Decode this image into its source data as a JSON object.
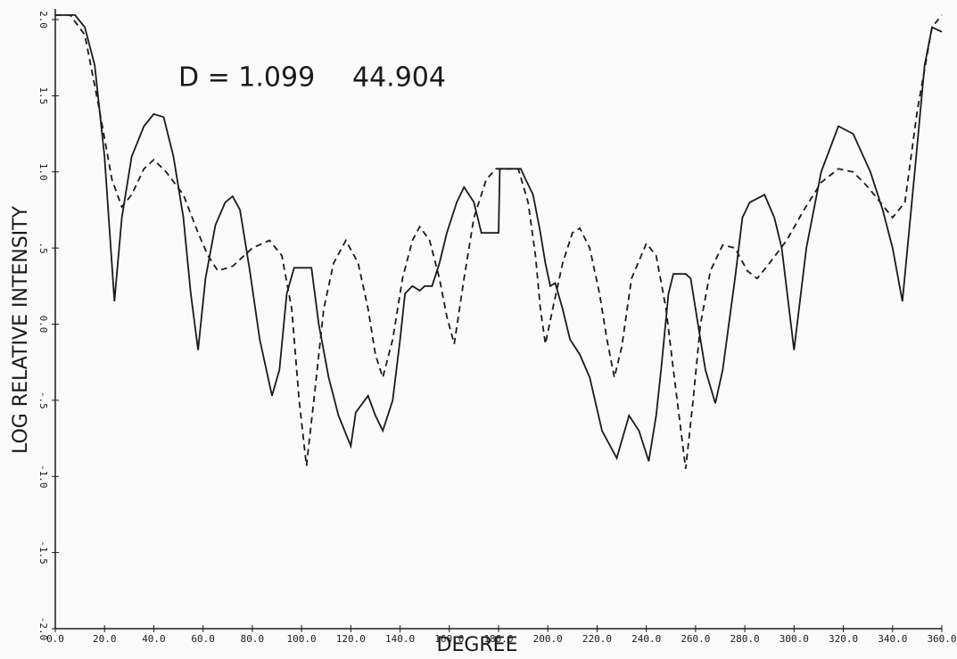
{
  "chart_data": {
    "type": "line",
    "annotations": [
      "D = 1.099",
      "44.904"
    ],
    "xlabel": "DEGREE",
    "ylabel": "LOG RELATIVE INTENSITY",
    "xlim": [
      0,
      360
    ],
    "ylim": [
      -2,
      2
    ],
    "xticks": [
      {
        "value": 0,
        "label": "0.0"
      },
      {
        "value": 20,
        "label": "20.0"
      },
      {
        "value": 40,
        "label": "40.0"
      },
      {
        "value": 60,
        "label": "60.0"
      },
      {
        "value": 80,
        "label": "80.0"
      },
      {
        "value": 100,
        "label": "100.0"
      },
      {
        "value": 120,
        "label": "120.0"
      },
      {
        "value": 140,
        "label": "140.0"
      },
      {
        "value": 160,
        "label": "160.0"
      },
      {
        "value": 180,
        "label": "180.0"
      },
      {
        "value": 200,
        "label": "200.0"
      },
      {
        "value": 220,
        "label": "220.0"
      },
      {
        "value": 240,
        "label": "240.0"
      },
      {
        "value": 260,
        "label": "260.0"
      },
      {
        "value": 280,
        "label": "280.0"
      },
      {
        "value": 300,
        "label": "300.0"
      },
      {
        "value": 320,
        "label": "320.0"
      },
      {
        "value": 340,
        "label": "340.0"
      },
      {
        "value": 360,
        "label": "360.0"
      }
    ],
    "yticks": [
      {
        "value": -2,
        "label": "-2.0"
      },
      {
        "value": -1.5,
        "label": "-1.5"
      },
      {
        "value": -1,
        "label": "-1.0"
      },
      {
        "value": -0.5,
        "label": "-.5"
      },
      {
        "value": 0,
        "label": "0.0"
      },
      {
        "value": 0.5,
        "label": ".5"
      },
      {
        "value": 1,
        "label": "1.0"
      },
      {
        "value": 1.5,
        "label": "1.5"
      },
      {
        "value": 2,
        "label": "2.0"
      }
    ],
    "series": [
      {
        "color": "#1a1a1a",
        "style": "solid",
        "x": [
          0,
          8,
          12,
          16,
          20,
          24,
          27,
          31,
          36,
          40,
          44,
          48,
          52,
          55,
          58,
          61,
          65,
          69,
          72,
          75,
          79,
          83,
          88,
          91,
          94,
          97,
          104,
          107,
          111,
          115,
          120,
          122,
          127,
          130,
          133,
          137,
          140,
          142,
          145,
          148,
          150,
          153,
          156,
          159,
          163,
          166,
          170,
          173,
          180,
          180.5,
          189,
          191,
          194,
          197,
          199,
          201,
          203,
          206,
          209,
          213,
          217,
          222,
          228,
          233,
          237,
          241,
          244,
          246,
          249,
          251,
          256,
          258,
          261,
          264,
          268,
          271,
          276,
          279,
          282,
          288,
          292,
          295,
          300,
          305,
          311,
          318,
          324,
          331,
          336,
          340,
          344,
          349,
          353,
          356,
          360
        ],
        "values": [
          2.03,
          2.03,
          1.95,
          1.7,
          1.1,
          0.15,
          0.7,
          1.1,
          1.3,
          1.38,
          1.36,
          1.1,
          0.7,
          0.2,
          -0.17,
          0.3,
          0.65,
          0.8,
          0.84,
          0.75,
          0.35,
          -0.1,
          -0.47,
          -0.3,
          0.2,
          0.37,
          0.37,
          0.0,
          -0.35,
          -0.6,
          -0.8,
          -0.58,
          -0.47,
          -0.6,
          -0.7,
          -0.5,
          -0.1,
          0.2,
          0.25,
          0.22,
          0.25,
          0.25,
          0.4,
          0.6,
          0.8,
          0.9,
          0.8,
          0.6,
          0.6,
          1.02,
          1.02,
          0.95,
          0.85,
          0.6,
          0.4,
          0.25,
          0.27,
          0.1,
          -0.1,
          -0.2,
          -0.35,
          -0.7,
          -0.88,
          -0.6,
          -0.7,
          -0.9,
          -0.6,
          -0.3,
          0.2,
          0.33,
          0.33,
          0.3,
          0.0,
          -0.3,
          -0.52,
          -0.3,
          0.3,
          0.7,
          0.8,
          0.85,
          0.7,
          0.5,
          -0.17,
          0.5,
          1.0,
          1.3,
          1.25,
          1.0,
          0.75,
          0.5,
          0.15,
          1.0,
          1.7,
          1.95,
          1.92
        ]
      },
      {
        "color": "#1a1a1a",
        "style": "dashed",
        "x": [
          0,
          6,
          12,
          18,
          23,
          27,
          31,
          36,
          40,
          45,
          52,
          58,
          62,
          66,
          72,
          80,
          87,
          92,
          96,
          99,
          102,
          105,
          109,
          113,
          118,
          123,
          127,
          130,
          133,
          137,
          141,
          145,
          148,
          152,
          156,
          159,
          162,
          166,
          170,
          175,
          179,
          188,
          192,
          195,
          197,
          199,
          202,
          206,
          210,
          213,
          217,
          221,
          224,
          227,
          230,
          234,
          240,
          244,
          248,
          251,
          256,
          259,
          262,
          266,
          271,
          276,
          281,
          285,
          290,
          297,
          304,
          311,
          318,
          324,
          330,
          335,
          340,
          345,
          350,
          356,
          360
        ],
        "values": [
          2.03,
          2.03,
          1.9,
          1.4,
          0.95,
          0.77,
          0.85,
          1.02,
          1.08,
          1.0,
          0.85,
          0.6,
          0.45,
          0.35,
          0.38,
          0.5,
          0.55,
          0.45,
          0.1,
          -0.5,
          -0.93,
          -0.5,
          0.1,
          0.4,
          0.55,
          0.4,
          0.1,
          -0.2,
          -0.35,
          -0.1,
          0.3,
          0.55,
          0.64,
          0.55,
          0.3,
          0.05,
          -0.13,
          0.3,
          0.7,
          0.95,
          1.02,
          1.02,
          0.8,
          0.45,
          0.1,
          -0.13,
          0.1,
          0.4,
          0.6,
          0.63,
          0.5,
          0.2,
          -0.1,
          -0.35,
          -0.15,
          0.3,
          0.53,
          0.45,
          0.1,
          -0.3,
          -0.95,
          -0.5,
          0.0,
          0.35,
          0.52,
          0.5,
          0.35,
          0.3,
          0.4,
          0.55,
          0.75,
          0.93,
          1.02,
          1.0,
          0.9,
          0.8,
          0.7,
          0.8,
          1.4,
          1.95,
          2.03
        ]
      }
    ]
  }
}
